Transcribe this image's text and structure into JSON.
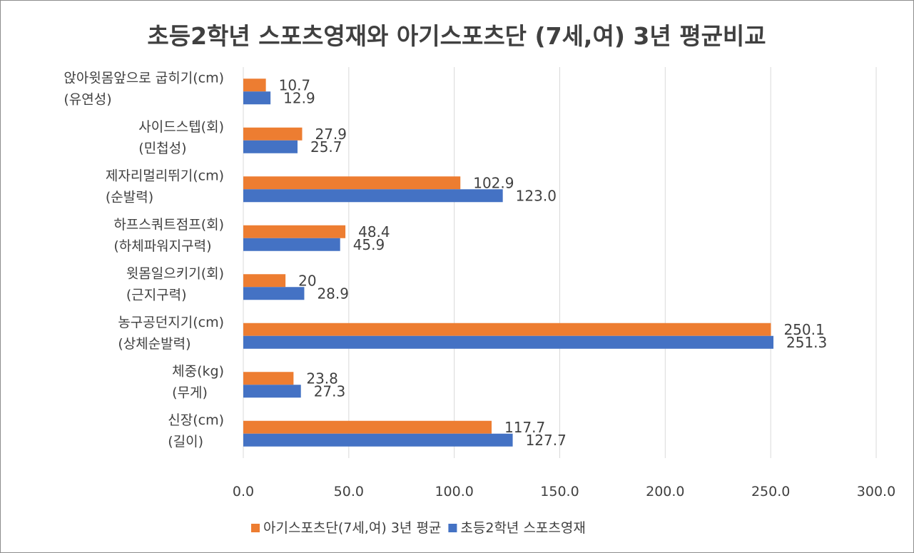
{
  "chart_data": {
    "type": "bar",
    "orientation": "horizontal",
    "title": "초등2학년 스포츠영재와 아기스포츠단 (7세,여)  3년 평균비교",
    "categories": [
      [
        "앉아윗몸앞으로 굽히기(cm)",
        "(유연성)"
      ],
      [
        "사이드스텝(회)",
        "(민첩성)"
      ],
      [
        "제자리멀리뛰기(cm)",
        "(순발력)"
      ],
      [
        "하프스쿼트점프(회)",
        "(하체파워지구력)"
      ],
      [
        "윗몸일으키기(회)",
        "(근지구력)"
      ],
      [
        "농구공던지기(cm)",
        "(상체순발력)"
      ],
      [
        "체중(kg)",
        "(무게)"
      ],
      [
        "신장(cm)",
        "(길이)"
      ]
    ],
    "series": [
      {
        "name": "아기스포츠단(7세,여) 3년 평균",
        "color": "#ed7d31",
        "values": [
          10.7,
          27.9,
          102.9,
          48.4,
          20,
          250.1,
          23.8,
          117.7
        ],
        "labels": [
          "10.7",
          "27.9",
          "102.9",
          "48.4",
          "20",
          "250.1",
          "23.8",
          "117.7"
        ]
      },
      {
        "name": "초등2학년 스포츠영재",
        "color": "#4472c4",
        "values": [
          12.9,
          25.7,
          123.0,
          45.9,
          28.9,
          251.3,
          27.3,
          127.7
        ],
        "labels": [
          "12.9",
          "25.7",
          "123.0",
          "45.9",
          "28.9",
          "251.3",
          "27.3",
          "127.7"
        ]
      }
    ],
    "xlim": [
      0,
      300
    ],
    "xticks": [
      "0.0",
      "50.0",
      "100.0",
      "150.0",
      "200.0",
      "250.0",
      "300.0"
    ],
    "xtick_values": [
      0,
      50,
      100,
      150,
      200,
      250,
      300
    ],
    "grid": true,
    "legend": "bottom"
  }
}
